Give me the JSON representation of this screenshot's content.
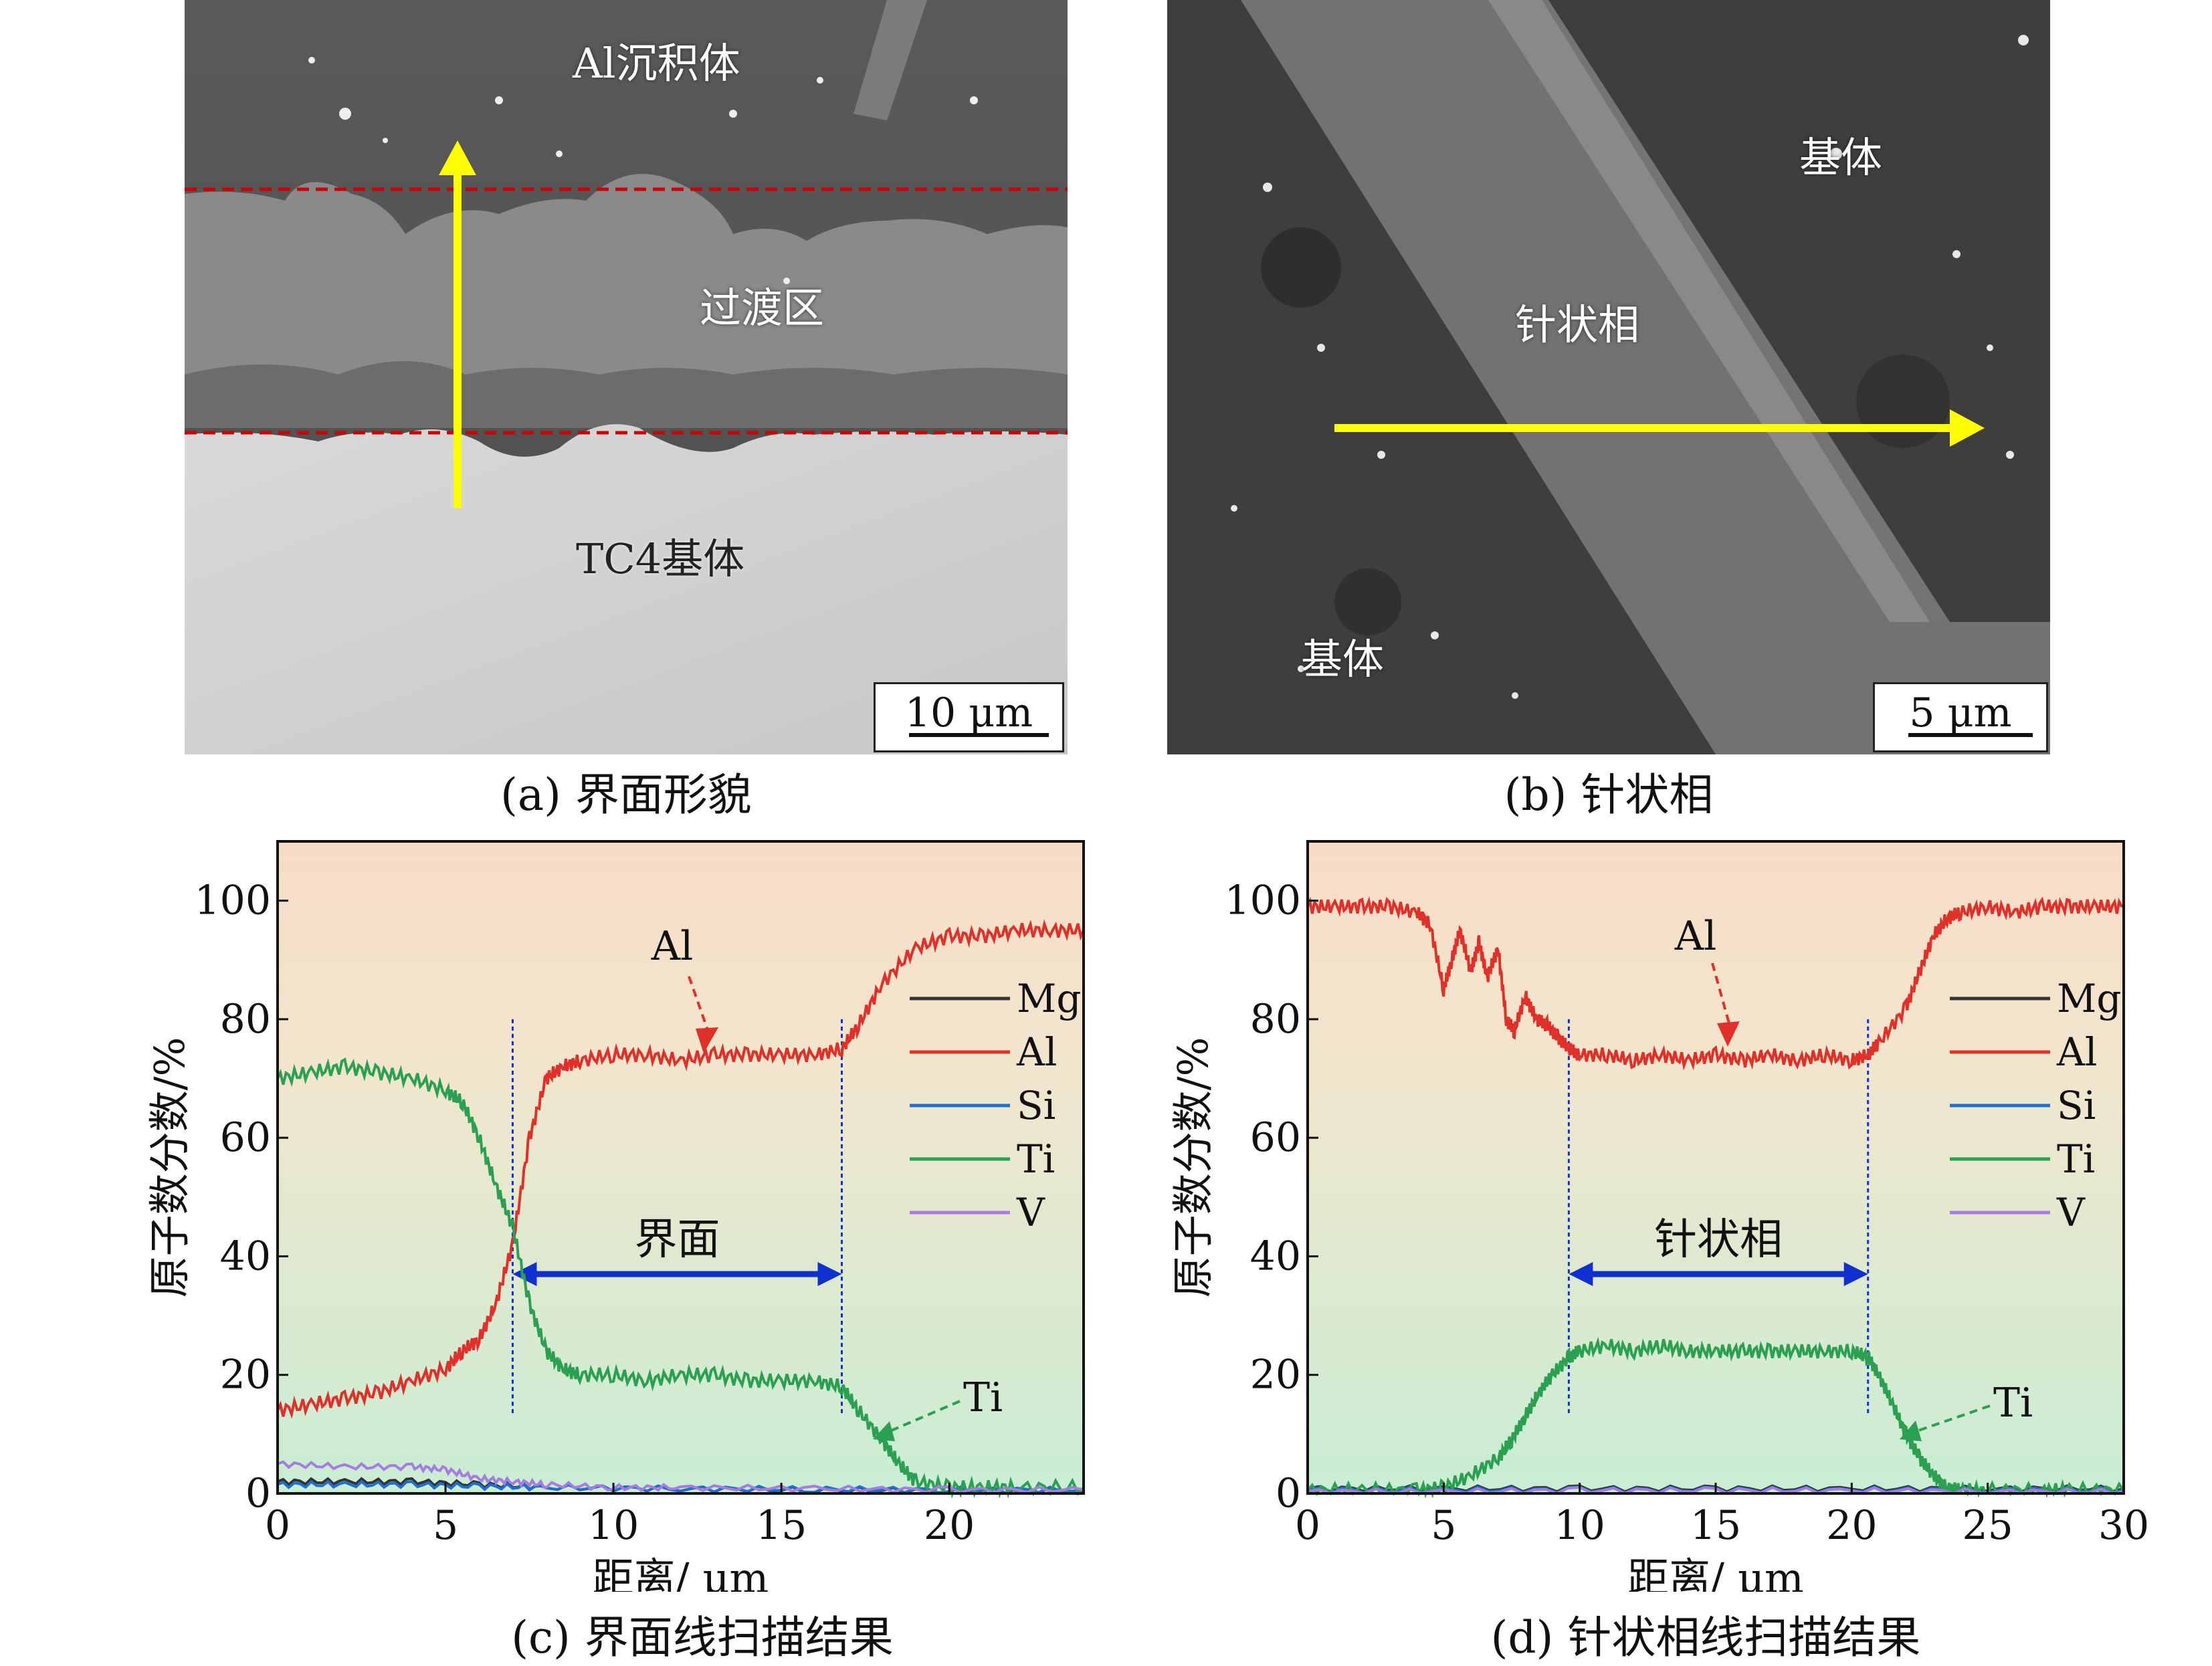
{
  "panels": {
    "a": {
      "caption": "(a) 界面形貌",
      "labels": {
        "top": "Al沉积体",
        "middle": "过渡区",
        "bottom": "TC4基体"
      },
      "scalebar": "10 μm"
    },
    "b": {
      "caption": "(b) 针状相",
      "labels": {
        "matrix_right": "基体",
        "needle": "针状相",
        "matrix_left": "基体"
      },
      "scalebar": "5 μm"
    },
    "c": {
      "caption": "(c) 界面线扫描结果"
    },
    "d": {
      "caption": "(d) 针状相线扫描结果"
    }
  },
  "colors": {
    "Mg": "#333333",
    "Al": "#e0302a",
    "Si": "#1f6fd1",
    "Ti": "#2aa050",
    "V": "#a67ce0",
    "arrow_yellow": "#ffff00",
    "dashed_red": "#cc0000",
    "band_blue": "#1030d0"
  },
  "chart_data": [
    {
      "type": "line",
      "xlabel": "距离/ μm",
      "ylabel": "原子数分数/%",
      "xlim": [
        0,
        24
      ],
      "ylim": [
        0,
        110
      ],
      "xticks": [
        0,
        5,
        10,
        15,
        20
      ],
      "yticks": [
        0,
        20,
        40,
        60,
        80,
        100
      ],
      "legend_position": "right",
      "region_label": "界面",
      "region": [
        7,
        16.8
      ],
      "annotations": [
        {
          "text": "Al",
          "series": "Al"
        },
        {
          "text": "Ti",
          "series": "Ti"
        }
      ],
      "series": [
        {
          "name": "Mg",
          "x": [
            0,
            2,
            4,
            6,
            8,
            12,
            16,
            20,
            24
          ],
          "y": [
            2,
            2,
            2,
            1.5,
            1,
            0.8,
            0.6,
            0.5,
            0.5
          ]
        },
        {
          "name": "Al",
          "x": [
            0,
            1,
            2,
            3,
            4,
            5,
            5.5,
            6,
            6.5,
            7,
            7.5,
            8,
            8.5,
            9,
            10,
            11,
            12,
            13,
            14,
            15,
            16,
            16.8,
            17.3,
            18,
            19,
            20,
            21,
            22,
            23,
            24
          ],
          "y": [
            14,
            15,
            16,
            17,
            19,
            21,
            24,
            26,
            32,
            42,
            60,
            70,
            72,
            73,
            74,
            74,
            73,
            74,
            74,
            74,
            74,
            75,
            79,
            86,
            92,
            94,
            94,
            95,
            95,
            95
          ]
        },
        {
          "name": "Si",
          "x": [
            0,
            2,
            4,
            6,
            8,
            12,
            16,
            20,
            24
          ],
          "y": [
            1.5,
            1.5,
            1.5,
            1.2,
            1,
            0.8,
            0.7,
            0.6,
            0.6
          ]
        },
        {
          "name": "Ti",
          "x": [
            0,
            1,
            2,
            3,
            4,
            5,
            5.5,
            6,
            6.5,
            7,
            7.5,
            8,
            8.5,
            9,
            10,
            11,
            12,
            13,
            14,
            15,
            16,
            16.8,
            17.3,
            18,
            18.5,
            19,
            20,
            21,
            22,
            24
          ],
          "y": [
            70,
            71,
            72,
            71,
            70,
            68,
            66,
            60,
            52,
            45,
            32,
            24,
            21,
            20,
            20,
            19,
            20,
            20,
            19,
            19,
            19,
            18,
            14,
            9,
            5,
            2,
            1,
            1,
            1,
            1
          ]
        },
        {
          "name": "V",
          "x": [
            0,
            2,
            4,
            5,
            6,
            7,
            8,
            10,
            12,
            16,
            20,
            24
          ],
          "y": [
            5,
            4.5,
            4.5,
            4,
            2.5,
            2,
            1.5,
            1,
            1,
            0.8,
            0.6,
            0.6
          ]
        }
      ]
    },
    {
      "type": "line",
      "xlabel": "距离/ μm",
      "ylabel": "原子数分数/%",
      "xlim": [
        0,
        30
      ],
      "ylim": [
        0,
        110
      ],
      "xticks": [
        0,
        5,
        10,
        15,
        20,
        25,
        30
      ],
      "yticks": [
        0,
        20,
        40,
        60,
        80,
        100
      ],
      "legend_position": "right",
      "region_label": "针状相",
      "region": [
        9.6,
        20.6
      ],
      "annotations": [
        {
          "text": "Al",
          "series": "Al"
        },
        {
          "text": "Ti",
          "series": "Ti"
        }
      ],
      "series": [
        {
          "name": "Mg",
          "x": [
            0,
            5,
            10,
            15,
            20,
            25,
            30
          ],
          "y": [
            0.8,
            0.8,
            0.8,
            0.8,
            0.8,
            0.8,
            0.8
          ]
        },
        {
          "name": "Al",
          "x": [
            0,
            1,
            2,
            3,
            4,
            4.5,
            5,
            5.3,
            5.6,
            6,
            6.3,
            6.6,
            7,
            7.3,
            7.6,
            8,
            8.4,
            8.8,
            9.2,
            9.6,
            10,
            11,
            12,
            13,
            14,
            15,
            16,
            17,
            18,
            19,
            20,
            20.6,
            21,
            22,
            22.5,
            23,
            23.5,
            24,
            25,
            26,
            27,
            28,
            29,
            30
          ],
          "y": [
            99,
            99,
            99,
            99,
            98,
            96,
            85,
            90,
            95,
            88,
            93,
            87,
            92,
            80,
            78,
            84,
            80,
            79,
            77,
            75,
            74,
            74,
            73,
            74,
            73,
            74,
            73,
            74,
            73,
            74,
            73,
            74,
            76,
            82,
            88,
            94,
            97,
            98,
            99,
            98,
            99,
            99,
            99,
            99
          ]
        },
        {
          "name": "Si",
          "x": [
            0,
            5,
            10,
            15,
            20,
            25,
            30
          ],
          "y": [
            0.6,
            0.6,
            0.6,
            0.6,
            0.6,
            0.6,
            0.6
          ]
        },
        {
          "name": "Ti",
          "x": [
            0,
            2,
            4,
            5,
            6,
            7,
            7.5,
            8,
            8.5,
            9,
            9.6,
            10,
            11,
            12,
            13,
            14,
            15,
            16,
            17,
            18,
            19,
            20,
            20.6,
            21,
            21.5,
            22,
            22.5,
            23,
            23.5,
            24,
            25,
            27,
            28,
            30
          ],
          "y": [
            0.5,
            0.5,
            0.5,
            1,
            3,
            6,
            9,
            13,
            17,
            20,
            23,
            24,
            25,
            24,
            25,
            24,
            24,
            24,
            24,
            24,
            24,
            24,
            23,
            20,
            15,
            10,
            6,
            3,
            1,
            0.5,
            0.5,
            0.5,
            0.5,
            0.5
          ]
        },
        {
          "name": "V",
          "x": [
            0,
            5,
            10,
            15,
            20,
            25,
            30
          ],
          "y": [
            0.3,
            0.3,
            0.5,
            0.5,
            0.5,
            0.3,
            0.3
          ]
        }
      ]
    }
  ]
}
